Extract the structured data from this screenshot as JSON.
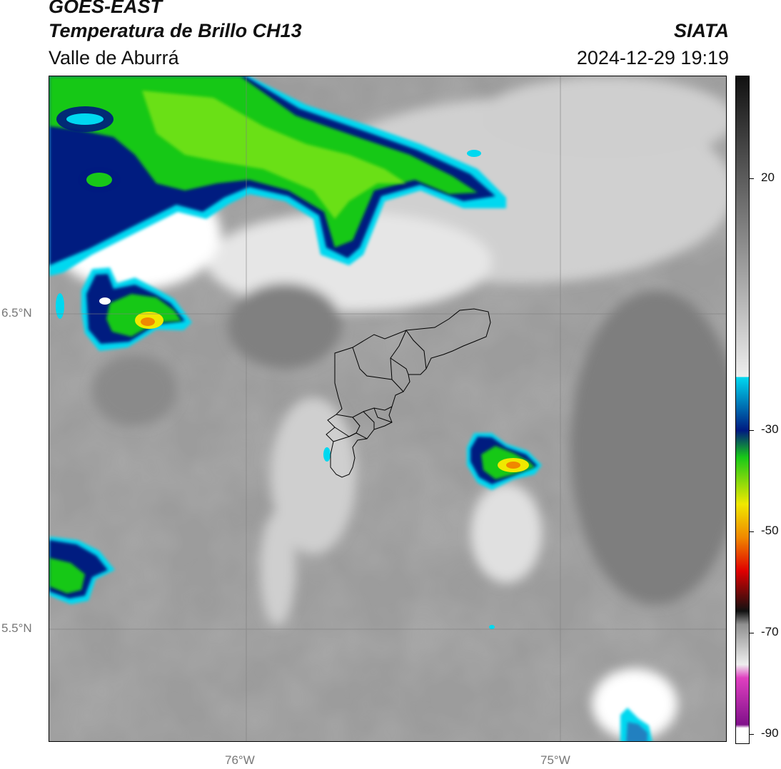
{
  "header": {
    "satellite": "GOES-EAST",
    "product": "Temperatura de Brillo CH13",
    "region": "Valle de Aburrá",
    "org": "SIATA",
    "datetime": "2024-12-29 19:19"
  },
  "map": {
    "lat_labels": [
      "6.5°N",
      "5.5°N"
    ],
    "lon_labels": [
      "76°W",
      "75°W"
    ],
    "gridlines": true
  },
  "colorbar": {
    "ticks": [
      "20",
      "-30",
      "-50",
      "-70",
      "-90"
    ],
    "colors": {
      "black": "#111111",
      "gray_light": "#eeeeee",
      "cyan": "#00d8f0",
      "navy": "#001a80",
      "green": "#18c818",
      "yellow": "#f0e800",
      "orange": "#f08800",
      "red": "#e00000",
      "magenta": "#e040c0",
      "purple": "#80108a"
    }
  }
}
